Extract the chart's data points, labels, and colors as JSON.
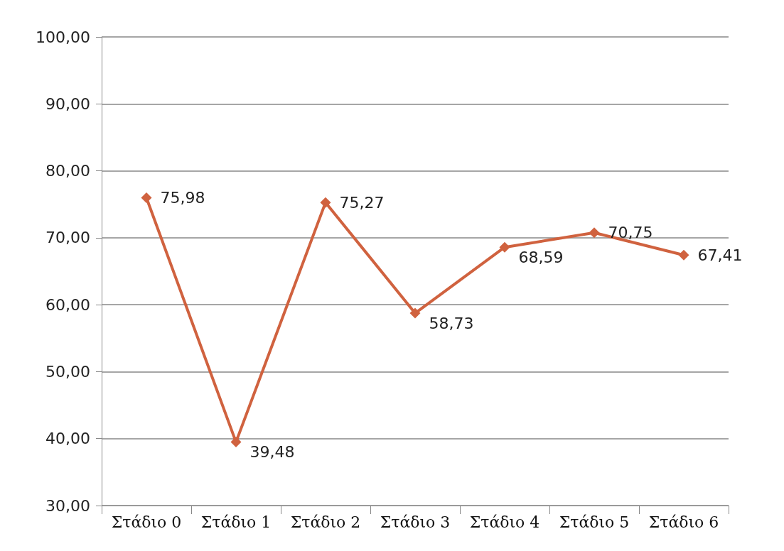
{
  "chart_data": {
    "type": "line",
    "categories": [
      "Στάδιο 0",
      "Στάδιο 1",
      "Στάδιο 2",
      "Στάδιο 3",
      "Στάδιο 4",
      "Στάδιο 5",
      "Στάδιο 6"
    ],
    "series": [
      {
        "color": "#d0623f",
        "values": [
          75.98,
          39.48,
          75.27,
          58.73,
          68.59,
          70.75,
          67.41
        ],
        "value_labels": [
          "75,98",
          "39,48",
          "75,27",
          "58,73",
          "68,59",
          "70,75",
          "67,41"
        ]
      }
    ],
    "ylim": [
      30,
      100
    ],
    "yticks": [
      {
        "value": 30,
        "label": "30,00"
      },
      {
        "value": 40,
        "label": "40,00"
      },
      {
        "value": 50,
        "label": "50,00"
      },
      {
        "value": 60,
        "label": "60,00"
      },
      {
        "value": 70,
        "label": "70,00"
      },
      {
        "value": 80,
        "label": "80,00"
      },
      {
        "value": 90,
        "label": "90,00"
      },
      {
        "value": 100,
        "label": "100,00"
      }
    ],
    "grid": "y",
    "marker": "diamond",
    "line_style": "solid"
  }
}
